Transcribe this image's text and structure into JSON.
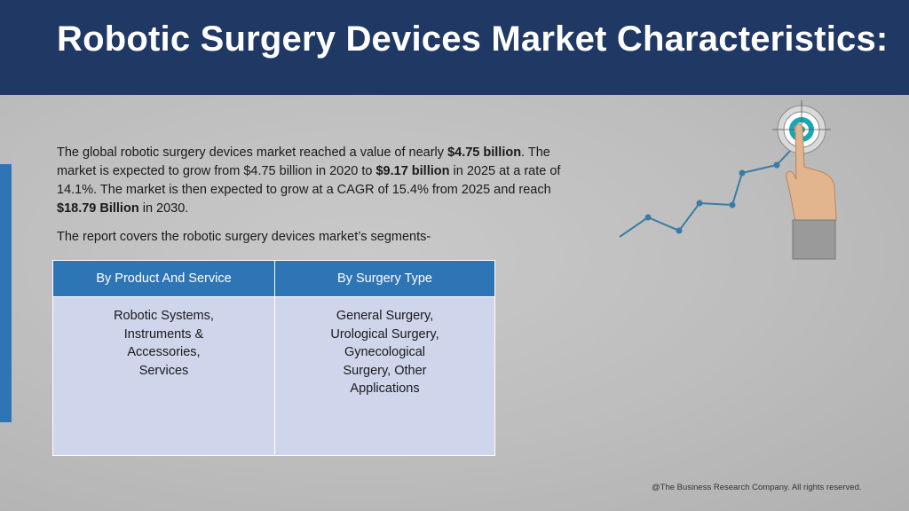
{
  "header": {
    "title": "Robotic Surgery Devices Market Characteristics:"
  },
  "content": {
    "paragraph1": {
      "t1": "The global robotic surgery devices market reached a value of nearly ",
      "b1": "$4.75 billion",
      "t2": ". The market is expected to grow from $4.75 billion in 2020 to ",
      "b2": "$9.17 billion",
      "t3": " in 2025 at a rate of 14.1%. The market is then expected to grow at a CAGR of 15.4% from 2025 and reach ",
      "b3": "$18.79 Billion",
      "t4": " in 2030."
    },
    "paragraph2": "The report covers the robotic surgery devices market’s segments-"
  },
  "segments": {
    "headers": [
      "By Product And Service",
      "By Surgery Type"
    ],
    "cells": [
      "Robotic Systems,\nInstruments &\nAccessories,\nServices",
      "General Surgery,\nUrological Surgery,\nGynecological\nSurgery, Other\nApplications"
    ]
  },
  "illustration": {
    "icon": "growth-chart-target-hand-icon"
  },
  "footer": {
    "copyright": "@The Business Research Company. All rights reserved."
  },
  "colors": {
    "header_bg": "#1f3864",
    "accent_blue": "#2e75b6",
    "table_body_bg": "#cfd5ea",
    "chart_line": "#3a7ca5"
  }
}
